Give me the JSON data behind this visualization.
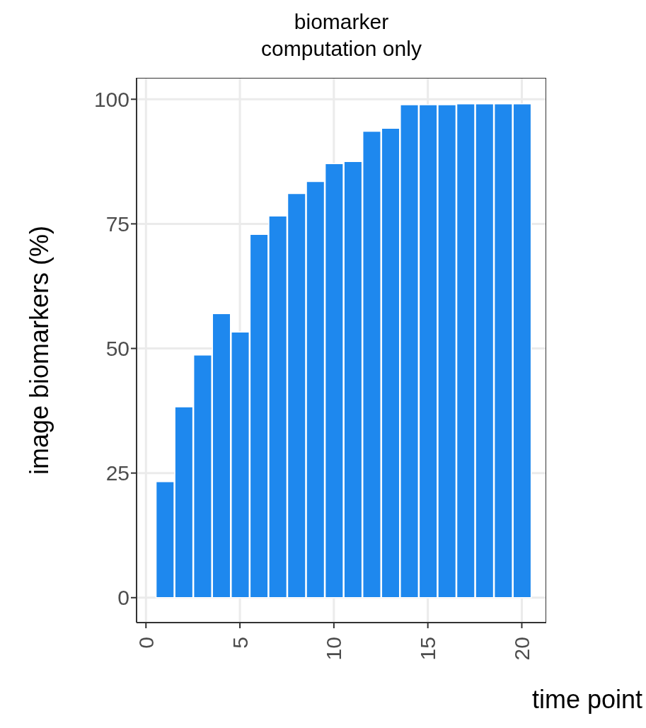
{
  "chart_data": {
    "type": "bar",
    "title": "biomarker\ncomputation only",
    "xlabel": "time point",
    "ylabel": "image biomarkers (%)",
    "x": [
      1,
      2,
      3,
      4,
      5,
      6,
      7,
      8,
      9,
      10,
      11,
      12,
      13,
      14,
      15,
      16,
      17,
      18,
      19,
      20
    ],
    "values": [
      23.3,
      38.3,
      48.7,
      57.0,
      53.3,
      72.9,
      76.6,
      81.1,
      83.5,
      87.1,
      87.5,
      93.6,
      94.2,
      98.9,
      98.9,
      98.9,
      99.1,
      99.1,
      99.1,
      99.1
    ],
    "color": "#1e88ee",
    "xlim": [
      -0.5,
      21.3
    ],
    "xticks": [
      0,
      5,
      10,
      15,
      20
    ],
    "ylim": [
      -5,
      104.3
    ],
    "yticks": [
      0,
      25,
      50,
      75,
      100
    ],
    "grid": true
  }
}
